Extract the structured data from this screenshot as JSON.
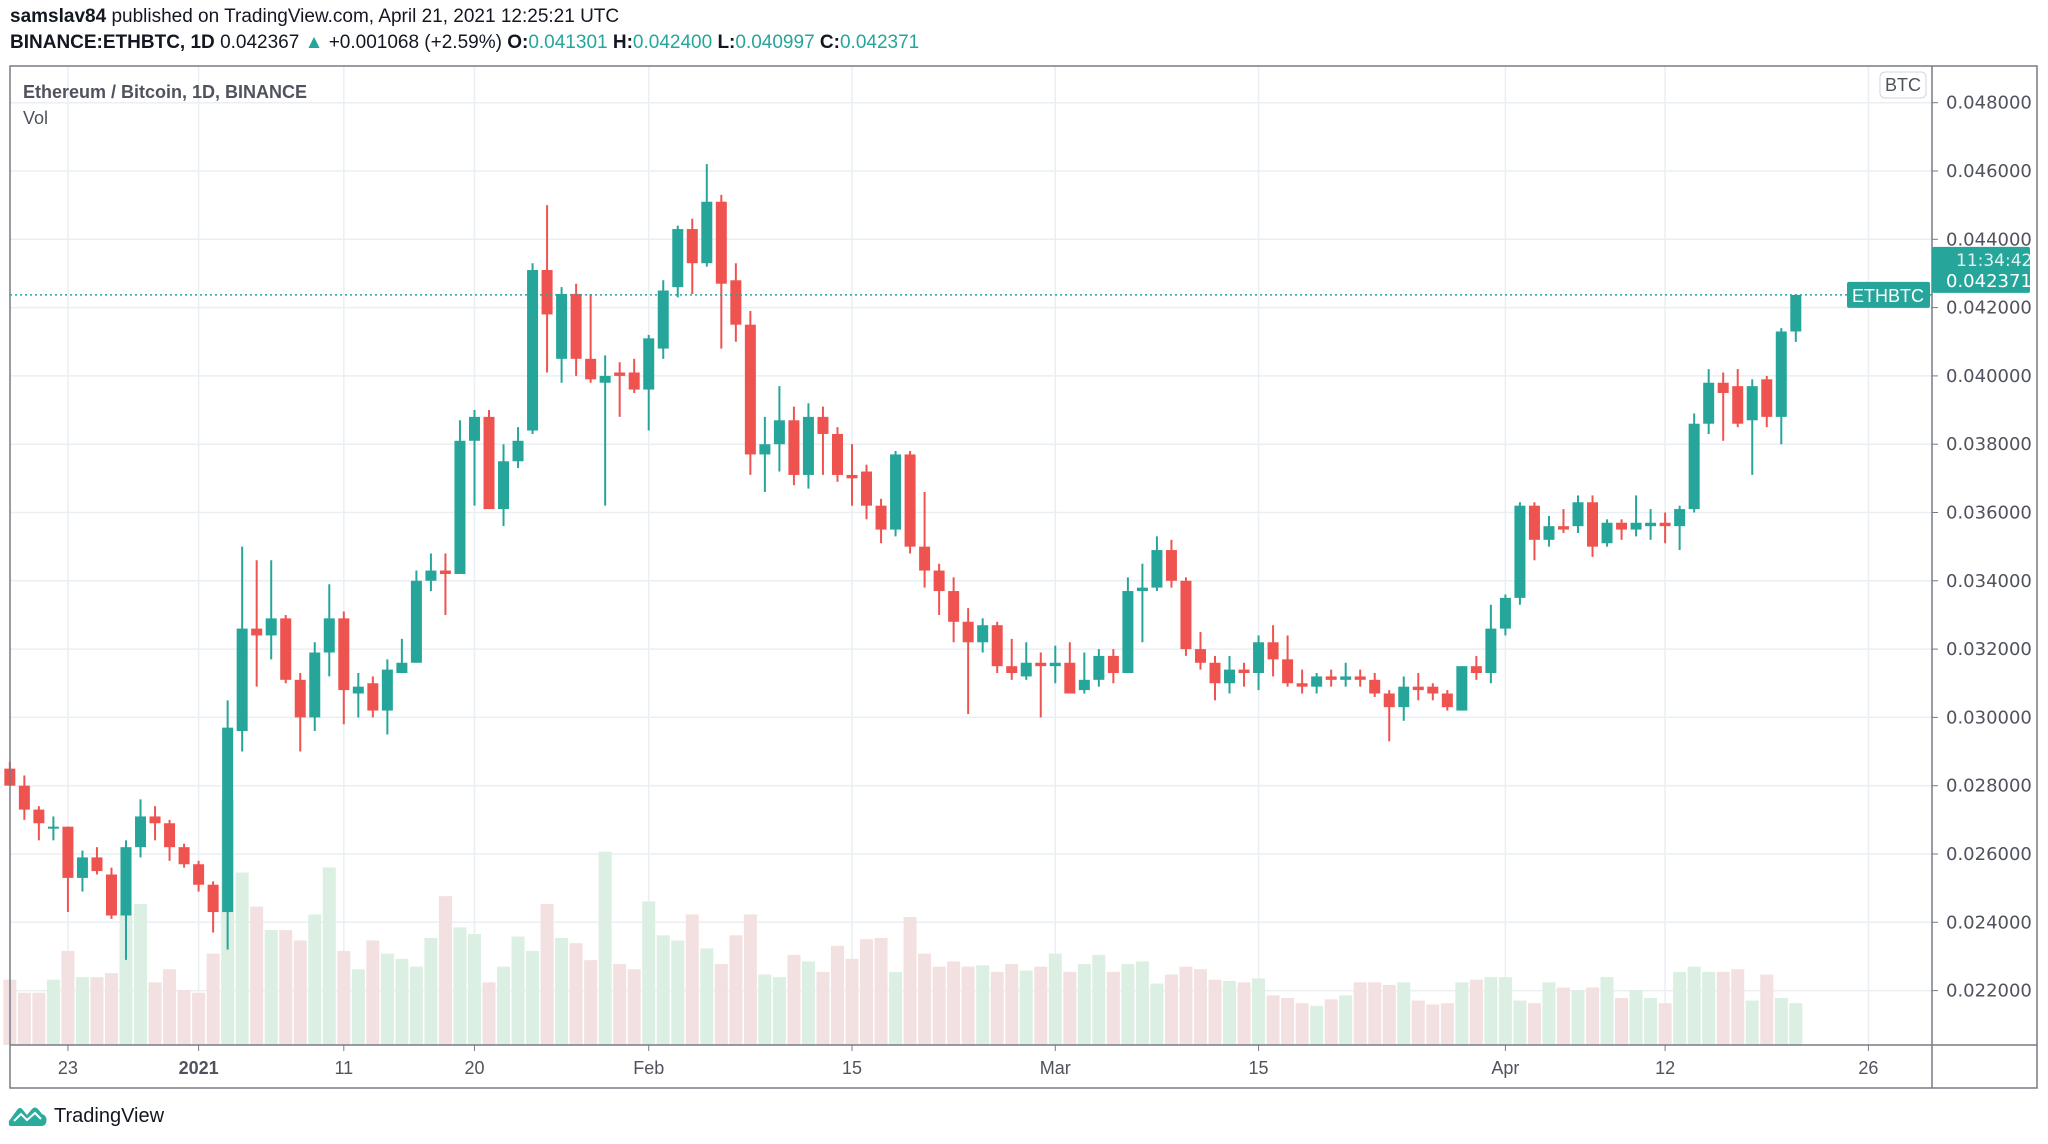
{
  "header": {
    "publisher": "samslav84",
    "published_text": "published on TradingView.com, April 21, 2021 12:25:21 UTC",
    "symbol": "BINANCE:ETHBTC, 1D",
    "last": "0.042367",
    "change": "+0.001068 (+2.59%)",
    "o_label": "O:",
    "o": "0.041301",
    "h_label": "H:",
    "h": "0.042400",
    "l_label": "L:",
    "l": "0.040997",
    "c_label": "C:",
    "c": "0.042371"
  },
  "footer": {
    "brand": "TradingView"
  },
  "colors": {
    "up": "#26a69a",
    "down": "#ef5350",
    "grid": "#e9eff3",
    "up_icon": "triangle-up-icon"
  },
  "chart_data": {
    "type": "candlestick",
    "title": "Ethereum / Bitcoin, 1D, BINANCE",
    "indicator": "Vol",
    "currency_label": "BTC",
    "symbol_label": "ETHBTC",
    "last_price": "0.042371",
    "countdown": "11:34:42",
    "start_date": "2020-12-19",
    "ylim": [
      0.0205,
      0.0488
    ],
    "y_ticks": [
      "0.048000",
      "0.046000",
      "0.044000",
      "0.042000",
      "0.040000",
      "0.038000",
      "0.036000",
      "0.034000",
      "0.032000",
      "0.030000",
      "0.028000",
      "0.026000",
      "0.024000",
      "0.022000"
    ],
    "x_ticks": [
      {
        "label": "23",
        "date": "2020-12-23"
      },
      {
        "label": "2021",
        "date": "2021-01-01"
      },
      {
        "label": "11",
        "date": "2021-01-11"
      },
      {
        "label": "20",
        "date": "2021-01-20"
      },
      {
        "label": "Feb",
        "date": "2021-02-01"
      },
      {
        "label": "15",
        "date": "2021-02-15"
      },
      {
        "label": "Mar",
        "date": "2021-03-01"
      },
      {
        "label": "15",
        "date": "2021-03-15"
      },
      {
        "label": "Apr",
        "date": "2021-04-01"
      },
      {
        "label": "12",
        "date": "2021-04-12"
      },
      {
        "label": "26",
        "date": "2021-04-26"
      }
    ],
    "grid": true,
    "ohlc": [
      [
        0.0285,
        0.0287,
        0.028,
        0.028
      ],
      [
        0.028,
        0.0283,
        0.027,
        0.0273
      ],
      [
        0.0273,
        0.0274,
        0.0264,
        0.0269
      ],
      [
        0.0268,
        0.0271,
        0.0264,
        0.0268
      ],
      [
        0.0268,
        0.0268,
        0.0243,
        0.0253
      ],
      [
        0.0253,
        0.0261,
        0.0249,
        0.0259
      ],
      [
        0.0259,
        0.0262,
        0.0254,
        0.0255
      ],
      [
        0.0254,
        0.0256,
        0.0241,
        0.0242
      ],
      [
        0.0242,
        0.0264,
        0.0229,
        0.0262
      ],
      [
        0.0262,
        0.0276,
        0.0259,
        0.0271
      ],
      [
        0.0271,
        0.0274,
        0.0264,
        0.0269
      ],
      [
        0.0269,
        0.027,
        0.0258,
        0.0262
      ],
      [
        0.0262,
        0.0263,
        0.0256,
        0.0257
      ],
      [
        0.0257,
        0.0258,
        0.0249,
        0.0251
      ],
      [
        0.0251,
        0.0252,
        0.0237,
        0.0243
      ],
      [
        0.0243,
        0.0305,
        0.0232,
        0.0297
      ],
      [
        0.0296,
        0.035,
        0.029,
        0.0326
      ],
      [
        0.0326,
        0.0346,
        0.0309,
        0.0324
      ],
      [
        0.0324,
        0.0346,
        0.0317,
        0.0329
      ],
      [
        0.0329,
        0.033,
        0.031,
        0.0311
      ],
      [
        0.0311,
        0.0313,
        0.029,
        0.03
      ],
      [
        0.03,
        0.0322,
        0.0296,
        0.0319
      ],
      [
        0.0319,
        0.0339,
        0.0312,
        0.0329
      ],
      [
        0.0329,
        0.0331,
        0.0298,
        0.0308
      ],
      [
        0.0307,
        0.0313,
        0.03,
        0.0309
      ],
      [
        0.031,
        0.0312,
        0.03,
        0.0302
      ],
      [
        0.0302,
        0.0317,
        0.0295,
        0.0314
      ],
      [
        0.0313,
        0.0323,
        0.0313,
        0.0316
      ],
      [
        0.0316,
        0.0343,
        0.0316,
        0.034
      ],
      [
        0.034,
        0.0348,
        0.0337,
        0.0343
      ],
      [
        0.0343,
        0.0348,
        0.033,
        0.0342
      ],
      [
        0.0342,
        0.0387,
        0.0342,
        0.0381
      ],
      [
        0.0381,
        0.039,
        0.0362,
        0.0388
      ],
      [
        0.0388,
        0.039,
        0.0361,
        0.0361
      ],
      [
        0.0361,
        0.038,
        0.0356,
        0.0375
      ],
      [
        0.0375,
        0.0385,
        0.0373,
        0.0381
      ],
      [
        0.0384,
        0.0433,
        0.0383,
        0.0431
      ],
      [
        0.0431,
        0.045,
        0.0401,
        0.0418
      ],
      [
        0.0405,
        0.0426,
        0.0398,
        0.0424
      ],
      [
        0.0424,
        0.0427,
        0.04,
        0.0405
      ],
      [
        0.0405,
        0.0424,
        0.0398,
        0.0399
      ],
      [
        0.0398,
        0.0406,
        0.0362,
        0.04
      ],
      [
        0.0401,
        0.0404,
        0.0388,
        0.04
      ],
      [
        0.0401,
        0.0405,
        0.0395,
        0.0396
      ],
      [
        0.0396,
        0.0412,
        0.0384,
        0.0411
      ],
      [
        0.0408,
        0.0428,
        0.0405,
        0.0425
      ],
      [
        0.0426,
        0.0444,
        0.0423,
        0.0443
      ],
      [
        0.0443,
        0.0446,
        0.0424,
        0.0433
      ],
      [
        0.0433,
        0.0462,
        0.0432,
        0.0451
      ],
      [
        0.0451,
        0.0453,
        0.0408,
        0.0427
      ],
      [
        0.0428,
        0.0433,
        0.041,
        0.0415
      ],
      [
        0.0415,
        0.0419,
        0.0371,
        0.0377
      ],
      [
        0.0377,
        0.0388,
        0.0366,
        0.038
      ],
      [
        0.038,
        0.0397,
        0.0372,
        0.0387
      ],
      [
        0.0387,
        0.0391,
        0.0368,
        0.0371
      ],
      [
        0.0371,
        0.0392,
        0.0367,
        0.0388
      ],
      [
        0.0388,
        0.0391,
        0.0371,
        0.0383
      ],
      [
        0.0383,
        0.0385,
        0.0369,
        0.0371
      ],
      [
        0.0371,
        0.038,
        0.0362,
        0.037
      ],
      [
        0.0372,
        0.0374,
        0.0358,
        0.0362
      ],
      [
        0.0362,
        0.0364,
        0.0351,
        0.0355
      ],
      [
        0.0355,
        0.0378,
        0.0353,
        0.0377
      ],
      [
        0.0377,
        0.0378,
        0.0348,
        0.035
      ],
      [
        0.035,
        0.0366,
        0.0338,
        0.0343
      ],
      [
        0.0343,
        0.0345,
        0.033,
        0.0337
      ],
      [
        0.0337,
        0.0341,
        0.0322,
        0.0328
      ],
      [
        0.0328,
        0.0332,
        0.0301,
        0.0322
      ],
      [
        0.0322,
        0.0329,
        0.0319,
        0.0327
      ],
      [
        0.0327,
        0.0328,
        0.0313,
        0.0315
      ],
      [
        0.0315,
        0.0323,
        0.0311,
        0.0313
      ],
      [
        0.0312,
        0.0322,
        0.0311,
        0.0316
      ],
      [
        0.0316,
        0.0319,
        0.03,
        0.0315
      ],
      [
        0.0315,
        0.0321,
        0.031,
        0.0316
      ],
      [
        0.0316,
        0.0322,
        0.0307,
        0.0307
      ],
      [
        0.0308,
        0.0319,
        0.0307,
        0.0311
      ],
      [
        0.0311,
        0.032,
        0.0309,
        0.0318
      ],
      [
        0.0318,
        0.032,
        0.031,
        0.0313
      ],
      [
        0.0313,
        0.0341,
        0.0313,
        0.0337
      ],
      [
        0.0337,
        0.0345,
        0.0322,
        0.0338
      ],
      [
        0.0338,
        0.0353,
        0.0337,
        0.0349
      ],
      [
        0.0349,
        0.0352,
        0.0338,
        0.034
      ],
      [
        0.034,
        0.0341,
        0.0318,
        0.032
      ],
      [
        0.032,
        0.0325,
        0.0314,
        0.0316
      ],
      [
        0.0316,
        0.0318,
        0.0305,
        0.031
      ],
      [
        0.031,
        0.0318,
        0.0307,
        0.0314
      ],
      [
        0.0314,
        0.0316,
        0.0309,
        0.0313
      ],
      [
        0.0313,
        0.0324,
        0.0308,
        0.0322
      ],
      [
        0.0322,
        0.0327,
        0.0312,
        0.0317
      ],
      [
        0.0317,
        0.0324,
        0.0309,
        0.031
      ],
      [
        0.031,
        0.0314,
        0.0307,
        0.0309
      ],
      [
        0.0309,
        0.0313,
        0.0307,
        0.0312
      ],
      [
        0.0312,
        0.0314,
        0.0309,
        0.0311
      ],
      [
        0.0311,
        0.0316,
        0.0309,
        0.0312
      ],
      [
        0.0312,
        0.0314,
        0.0309,
        0.0311
      ],
      [
        0.0311,
        0.0313,
        0.0306,
        0.0307
      ],
      [
        0.0307,
        0.0308,
        0.0293,
        0.0303
      ],
      [
        0.0303,
        0.0312,
        0.0299,
        0.0309
      ],
      [
        0.0309,
        0.0313,
        0.0305,
        0.0308
      ],
      [
        0.0309,
        0.031,
        0.0305,
        0.0307
      ],
      [
        0.0307,
        0.0308,
        0.0302,
        0.0303
      ],
      [
        0.0302,
        0.0315,
        0.0302,
        0.0315
      ],
      [
        0.0315,
        0.0318,
        0.0311,
        0.0313
      ],
      [
        0.0313,
        0.0333,
        0.031,
        0.0326
      ],
      [
        0.0326,
        0.0336,
        0.0324,
        0.0335
      ],
      [
        0.0335,
        0.0363,
        0.0333,
        0.0362
      ],
      [
        0.0362,
        0.0363,
        0.0346,
        0.0352
      ],
      [
        0.0352,
        0.0359,
        0.035,
        0.0356
      ],
      [
        0.0356,
        0.0361,
        0.0354,
        0.0355
      ],
      [
        0.0356,
        0.0365,
        0.0354,
        0.0363
      ],
      [
        0.0363,
        0.0365,
        0.0347,
        0.035
      ],
      [
        0.0351,
        0.0358,
        0.035,
        0.0357
      ],
      [
        0.0357,
        0.0358,
        0.0352,
        0.0355
      ],
      [
        0.0355,
        0.0365,
        0.0353,
        0.0357
      ],
      [
        0.0356,
        0.0361,
        0.0352,
        0.0357
      ],
      [
        0.0357,
        0.036,
        0.0351,
        0.0356
      ],
      [
        0.0356,
        0.0362,
        0.0349,
        0.0361
      ],
      [
        0.0361,
        0.0389,
        0.036,
        0.0386
      ],
      [
        0.0386,
        0.0402,
        0.0383,
        0.0398
      ],
      [
        0.0398,
        0.0401,
        0.0381,
        0.0395
      ],
      [
        0.0397,
        0.0402,
        0.0385,
        0.0386
      ],
      [
        0.0387,
        0.0399,
        0.0371,
        0.0397
      ],
      [
        0.0399,
        0.04,
        0.0385,
        0.0388
      ],
      [
        0.0388,
        0.0414,
        0.038,
        0.0413
      ],
      [
        0.041301,
        0.0424,
        0.040997,
        0.042371
      ]
    ],
    "volume": [
      50,
      40,
      40,
      50,
      72,
      52,
      52,
      55,
      100,
      108,
      48,
      58,
      42,
      40,
      70,
      188,
      132,
      106,
      88,
      88,
      80,
      100,
      136,
      72,
      58,
      80,
      70,
      66,
      60,
      82,
      114,
      90,
      85,
      48,
      60,
      83,
      72,
      108,
      82,
      78,
      65,
      148,
      62,
      58,
      110,
      84,
      80,
      100,
      74,
      62,
      84,
      100,
      54,
      52,
      69,
      64,
      56,
      76,
      66,
      81,
      82,
      56,
      98,
      70,
      60,
      64,
      60,
      61,
      56,
      62,
      57,
      60,
      70,
      56,
      62,
      69,
      56,
      62,
      64,
      47,
      54,
      60,
      58,
      50,
      49,
      48,
      51,
      38,
      36,
      32,
      30,
      35,
      38,
      48,
      48,
      46,
      48,
      34,
      31,
      32,
      48,
      50,
      52,
      52,
      34,
      32,
      48,
      44,
      42,
      44,
      52,
      36,
      42,
      36,
      32,
      56,
      60,
      56,
      56,
      58,
      34,
      54,
      36,
      32
    ]
  }
}
